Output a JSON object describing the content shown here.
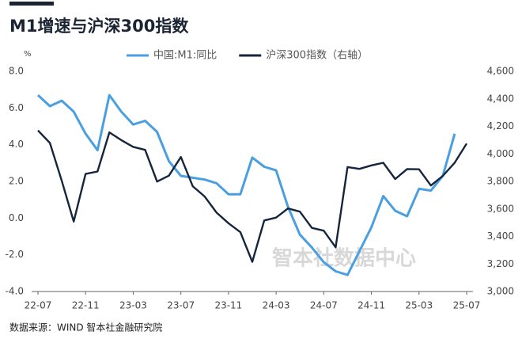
{
  "chart_data": {
    "type": "line",
    "title": "M1增速与沪深300指数",
    "y_unit": "%",
    "source": "数据来源：WIND 智本社金融研究院",
    "watermark": "智本社数据中心",
    "categories": [
      "22-07",
      null,
      null,
      null,
      "22-11",
      null,
      null,
      null,
      "23-03",
      null,
      null,
      null,
      "23-07",
      null,
      null,
      null,
      "23-11",
      null,
      null,
      null,
      "24-03",
      null,
      null,
      null,
      "24-07",
      null,
      null,
      null,
      "24-11",
      null,
      null,
      null,
      "25-03",
      null,
      null,
      null,
      "25-07"
    ],
    "series": [
      {
        "name": "中国:M1:同比",
        "color": "#4a9fe0",
        "axis": "y",
        "values": [
          6.7,
          6.1,
          6.4,
          5.8,
          4.6,
          3.7,
          6.7,
          5.8,
          5.1,
          5.3,
          4.7,
          3.1,
          2.3,
          2.2,
          2.1,
          1.9,
          1.3,
          1.3,
          3.3,
          2.8,
          2.6,
          0.6,
          -0.9,
          -1.6,
          -2.4,
          -2.9,
          -3.1,
          -1.8,
          -0.5,
          1.2,
          0.4,
          0.1,
          1.6,
          1.5,
          2.3,
          4.6,
          null
        ]
      },
      {
        "name": "沪深300指数（右轴）",
        "color": "#15253c",
        "axis": "y2",
        "values": [
          4170,
          4079,
          3804,
          3508,
          3854,
          3872,
          4156,
          4100,
          4051,
          4029,
          3799,
          3842,
          3977,
          3765,
          3690,
          3573,
          3496,
          3431,
          3216,
          3516,
          3537,
          3604,
          3580,
          3462,
          3442,
          3321,
          3904,
          3891,
          3916,
          3935,
          3817,
          3890,
          3888,
          3770,
          3840,
          3936,
          4075
        ]
      }
    ],
    "ylim": [
      -4,
      8
    ],
    "yticks": [
      {
        "value": -4,
        "label": "-4.0"
      },
      {
        "value": -2,
        "label": "-2.0"
      },
      {
        "value": 0,
        "label": "0.0"
      },
      {
        "value": 2,
        "label": "2.0"
      },
      {
        "value": 4,
        "label": "4.0"
      },
      {
        "value": 6,
        "label": "6.0"
      },
      {
        "value": 8,
        "label": "8.0"
      }
    ],
    "y2lim": [
      3000,
      4600
    ],
    "y2ticks": [
      {
        "value": 3000,
        "label": "3,000"
      },
      {
        "value": 3200,
        "label": "3,200"
      },
      {
        "value": 3400,
        "label": "3,400"
      },
      {
        "value": 3600,
        "label": "3,600"
      },
      {
        "value": 3800,
        "label": "3,800"
      },
      {
        "value": 4000,
        "label": "4,000"
      },
      {
        "value": 4200,
        "label": "4,200"
      },
      {
        "value": 4400,
        "label": "4,400"
      },
      {
        "value": 4600,
        "label": "4,600"
      }
    ],
    "legend": "top"
  }
}
